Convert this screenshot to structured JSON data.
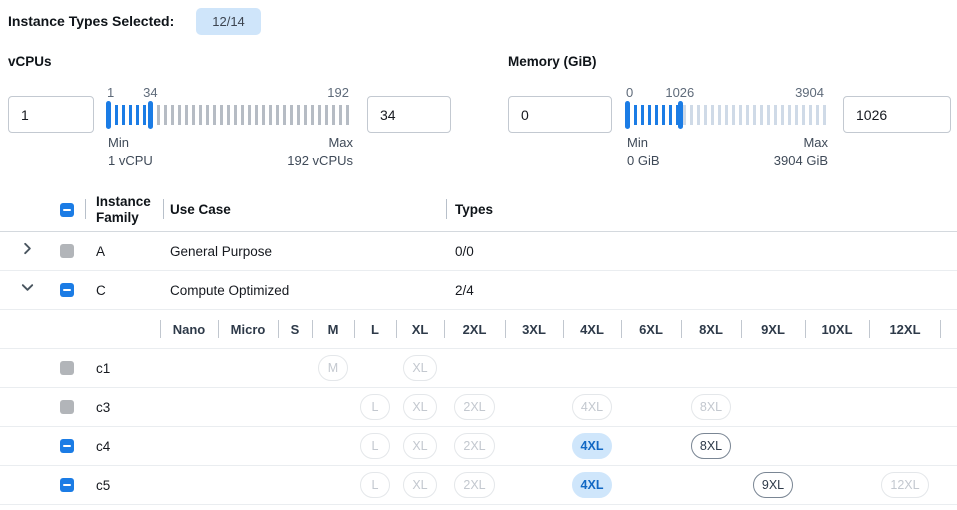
{
  "toolbar": {
    "title": "Instance Types Selected:",
    "badge": "12/14"
  },
  "filters": [
    {
      "title": "vCPUs",
      "left_input": "1",
      "right_input": "34",
      "tick_labels": [
        "1",
        "34",
        "192"
      ],
      "min_label": "Min",
      "min_caption": "1 vCPU",
      "max_label": "Max",
      "max_caption": "192 vCPUs",
      "range_min": 1,
      "range_max": 192,
      "selected_min": 1,
      "selected_max": 34
    },
    {
      "title": "Memory (GiB)",
      "left_input": "0",
      "right_input": "1026",
      "tick_labels": [
        "0",
        "1026",
        "3904"
      ],
      "min_label": "Min",
      "min_caption": "0 GiB",
      "max_label": "Max",
      "max_caption": "3904 GiB",
      "range_min": 0,
      "range_max": 3904,
      "selected_min": 0,
      "selected_max": 1026
    }
  ],
  "table": {
    "select_all_checkbox": "indeterminate",
    "headers": {
      "family": "Instance Family",
      "use_case": "Use Case",
      "types": "Types"
    },
    "family_rows": [
      {
        "family": "A",
        "use_case": "General Purpose",
        "types": "0/0",
        "chevron": "right",
        "checkbox": "disabled"
      },
      {
        "family": "C",
        "use_case": "Compute Optimized",
        "types": "2/4",
        "chevron": "down",
        "checkbox": "indeterminate"
      }
    ],
    "size_columns": [
      "Nano",
      "Micro",
      "S",
      "M",
      "L",
      "XL",
      "2XL",
      "3XL",
      "4XL",
      "6XL",
      "8XL",
      "9XL",
      "10XL",
      "12XL"
    ],
    "instance_rows": [
      {
        "name": "c1",
        "checkbox": "disabled",
        "pills": [
          {
            "size": "M",
            "state": "disabled"
          },
          {
            "size": "XL",
            "state": "disabled"
          }
        ]
      },
      {
        "name": "c3",
        "checkbox": "disabled",
        "pills": [
          {
            "size": "L",
            "state": "disabled"
          },
          {
            "size": "XL",
            "state": "disabled"
          },
          {
            "size": "2XL",
            "state": "disabled"
          },
          {
            "size": "4XL",
            "state": "disabled"
          },
          {
            "size": "8XL",
            "state": "disabled"
          }
        ]
      },
      {
        "name": "c4",
        "checkbox": "indeterminate",
        "pills": [
          {
            "size": "L",
            "state": "disabled"
          },
          {
            "size": "XL",
            "state": "disabled"
          },
          {
            "size": "2XL",
            "state": "disabled"
          },
          {
            "size": "4XL",
            "state": "selected"
          },
          {
            "size": "8XL",
            "state": "available"
          }
        ]
      },
      {
        "name": "c5",
        "checkbox": "indeterminate",
        "pills": [
          {
            "size": "L",
            "state": "disabled"
          },
          {
            "size": "XL",
            "state": "disabled"
          },
          {
            "size": "2XL",
            "state": "disabled"
          },
          {
            "size": "4XL",
            "state": "selected"
          },
          {
            "size": "9XL",
            "state": "available"
          },
          {
            "size": "12XL",
            "state": "disabled"
          }
        ]
      }
    ]
  },
  "colors": {
    "accent_blue": "#1b7ce5",
    "badge_bg": "#cfe5fa",
    "selected_pill_bg": "#cfe6fb",
    "selected_pill_text": "#1268c4",
    "disabled_gray": "#b2b5b9",
    "tick_inactive_vcpu": "#b6bcc4",
    "tick_inactive_memory": "#cfdae7"
  }
}
